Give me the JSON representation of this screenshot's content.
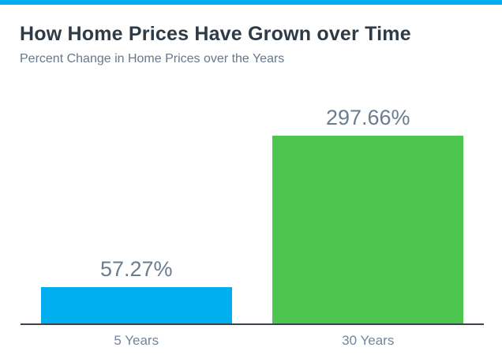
{
  "page": {
    "accent_color": "#00AEF0"
  },
  "chart_data": {
    "type": "bar",
    "title": "How Home Prices Have Grown over Time",
    "subtitle": "Percent Change in Home Prices over the Years",
    "categories": [
      "5 Years",
      "30 Years"
    ],
    "values": [
      57.27,
      297.66
    ],
    "value_labels": [
      "57.27%",
      "297.66%"
    ],
    "bar_colors": [
      "#00AEF0",
      "#4CC64E"
    ],
    "xlabel": "",
    "ylabel": "",
    "ylim": [
      0,
      320
    ],
    "grid": false,
    "legend": "none",
    "value_label_position": "above-bar",
    "axis_line_color": "#39444F",
    "title_color": "#2E3A45",
    "subtitle_color": "#66788A",
    "value_label_color": "#6B7C90",
    "category_label_color": "#74859B"
  }
}
